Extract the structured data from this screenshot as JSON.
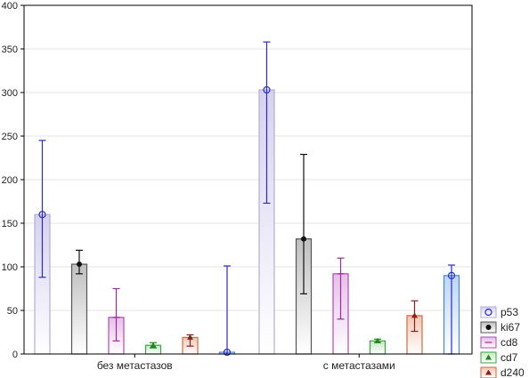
{
  "chart_data": {
    "type": "bar",
    "categories": [
      "без метастазов",
      "с метастазами"
    ],
    "ylim": [
      0,
      400
    ],
    "yticks": [
      0,
      50,
      100,
      150,
      200,
      250,
      300,
      350,
      400
    ],
    "grid": true,
    "legend_position": "bottom-right",
    "error_bars": true,
    "series": [
      {
        "name": "p53",
        "color": "#b3acd8",
        "fill_top": "#d6d2ee",
        "err_color": "#2a2ad0",
        "marker": "circle",
        "values": [
          160,
          303
        ],
        "err_low": [
          88,
          173
        ],
        "err_high": [
          245,
          358
        ]
      },
      {
        "name": "ki67",
        "color": "#555555",
        "fill_top": "#bfbfbf",
        "err_color": "#111111",
        "marker": "diamond",
        "values": [
          103,
          132
        ],
        "err_low": [
          92,
          69
        ],
        "err_high": [
          119,
          229
        ]
      },
      {
        "name": "cd8",
        "color": "#b04ab4",
        "fill_top": "#e6bfe8",
        "err_color": "#9a2a9e",
        "marker": "plus",
        "values": [
          42,
          92
        ],
        "err_low": [
          15,
          40
        ],
        "err_high": [
          75,
          110
        ]
      },
      {
        "name": "cd7",
        "color": "#3aa63a",
        "fill_top": "#c4e8c4",
        "err_color": "#1c8a1c",
        "marker": "triangle",
        "values": [
          10,
          15
        ],
        "err_low": [
          7,
          13
        ],
        "err_high": [
          13,
          17
        ]
      },
      {
        "name": "d240",
        "color": "#d06a44",
        "fill_top": "#f4c7b2",
        "err_color": "#8a1f1f",
        "marker": "triangle",
        "values": [
          19,
          44
        ],
        "err_low": [
          9,
          26
        ],
        "err_high": [
          22,
          61
        ]
      },
      {
        "name": "",
        "color": "#4a86d4",
        "fill_top": "#bcd7f4",
        "err_color": "#2a2ad0",
        "marker": "circle",
        "values": [
          2,
          90
        ],
        "err_low": [
          0,
          0
        ],
        "err_high": [
          101,
          102
        ]
      }
    ]
  }
}
